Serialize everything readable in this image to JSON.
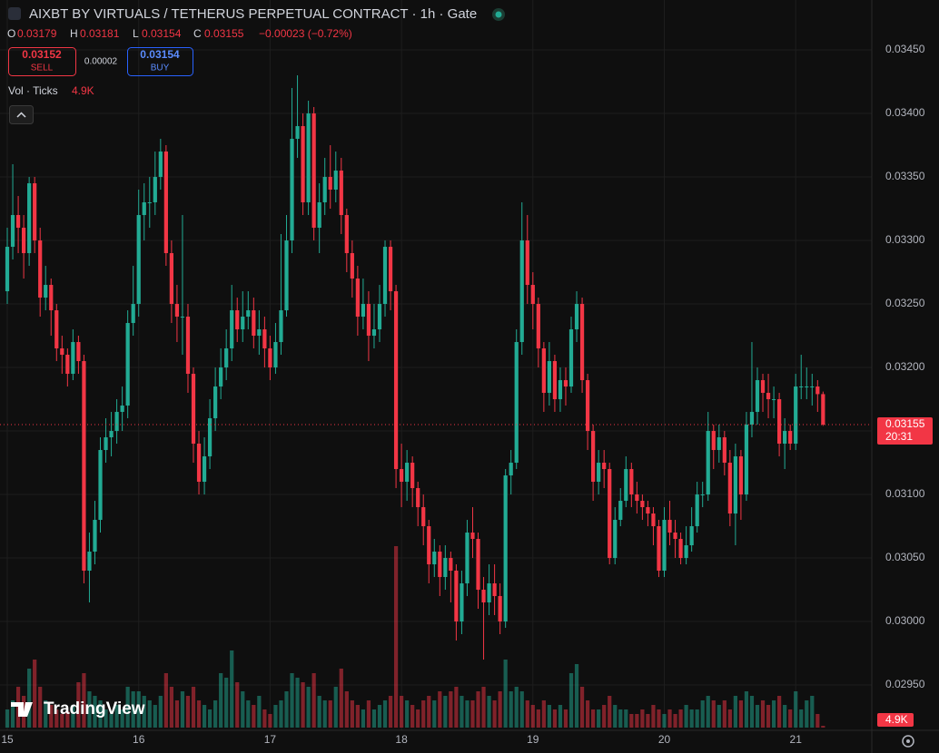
{
  "header": {
    "title": "AIXBT BY VIRTUALS / TETHERUS PERPETUAL CONTRACT · 1h · Gate",
    "o_key": "O",
    "o": "0.03179",
    "h_key": "H",
    "h": "0.03181",
    "l_key": "L",
    "l": "0.03154",
    "c_key": "C",
    "c": "0.03155",
    "change": "−0.00023 (−0.72%)",
    "sell_price": "0.03152",
    "sell": "SELL",
    "spread": "0.00002",
    "buy_price": "0.03154",
    "buy": "BUY",
    "vol_title": "Vol · Ticks",
    "vol_value": "4.9K",
    "brand": "TradingView"
  },
  "chart_data": {
    "type": "candlestick",
    "up_color": "#22ab94",
    "down_color": "#f23645",
    "volume_up_color": "rgba(34,171,148,0.5)",
    "volume_down_color": "rgba(242,54,69,0.5)",
    "open": [
      0.0326,
      0.03295,
      0.0332,
      0.0331,
      0.0329,
      0.03345,
      0.033,
      0.03255,
      0.03265,
      0.03245,
      0.03215,
      0.0321,
      0.03195,
      0.0322,
      0.03205,
      0.0304,
      0.03055,
      0.0308,
      0.03135,
      0.03145,
      0.0315,
      0.03165,
      0.0317,
      0.03235,
      0.0325,
      0.0332,
      0.0333,
      0.0333,
      0.0335,
      0.0337,
      0.0329,
      0.0325,
      0.0324,
      0.0324,
      0.03195,
      0.0314,
      0.0311,
      0.0313,
      0.0316,
      0.03185,
      0.032,
      0.03215,
      0.03245,
      0.0323,
      0.0324,
      0.03245,
      0.03225,
      0.0323,
      0.03215,
      0.032,
      0.0322,
      0.03245,
      0.033,
      0.0338,
      0.0339,
      0.0333,
      0.034,
      0.0331,
      0.0333,
      0.0335,
      0.0334,
      0.03355,
      0.0332,
      0.0329,
      0.0327,
      0.0324,
      0.0325,
      0.03225,
      0.0323,
      0.0325,
      0.03295,
      0.0326,
      0.0312,
      0.0311,
      0.03125,
      0.03105,
      0.0309,
      0.03075,
      0.03045,
      0.03055,
      0.03035,
      0.0305,
      0.0304,
      0.03,
      0.0303,
      0.0307,
      0.03065,
      0.03025,
      0.03015,
      0.0303,
      0.0302,
      0.03,
      0.03115,
      0.03125,
      0.0322,
      0.033,
      0.03265,
      0.0325,
      0.03215,
      0.0318,
      0.03205,
      0.03175,
      0.0319,
      0.03185,
      0.0323,
      0.0325,
      0.0319,
      0.0315,
      0.0311,
      0.03125,
      0.0312,
      0.0305,
      0.0308,
      0.03095,
      0.0312,
      0.031,
      0.03095,
      0.0309,
      0.03085,
      0.03075,
      0.0304,
      0.0308,
      0.0307,
      0.03065,
      0.0305,
      0.0306,
      0.03075,
      0.031,
      0.031,
      0.0315,
      0.03135,
      0.03145,
      0.03125,
      0.03085,
      0.0313,
      0.031,
      0.03155,
      0.03165,
      0.0319,
      0.0318,
      0.03175,
      0.03175,
      0.0314,
      0.0315,
      0.0314,
      0.03185,
      0.03185,
      0.03185,
      0.03185,
      0.03179
    ],
    "high": [
      0.0331,
      0.0336,
      0.03335,
      0.0332,
      0.0335,
      0.0335,
      0.0331,
      0.0328,
      0.0327,
      0.0325,
      0.03225,
      0.03215,
      0.0323,
      0.03225,
      0.0321,
      0.0307,
      0.03095,
      0.03145,
      0.0316,
      0.03165,
      0.03175,
      0.03185,
      0.03245,
      0.0328,
      0.0334,
      0.03345,
      0.0335,
      0.0337,
      0.0338,
      0.03375,
      0.033,
      0.03265,
      0.0332,
      0.0325,
      0.032,
      0.0315,
      0.03145,
      0.03175,
      0.032,
      0.03215,
      0.0323,
      0.03265,
      0.03255,
      0.0326,
      0.0326,
      0.03255,
      0.03245,
      0.0324,
      0.03225,
      0.03235,
      0.03305,
      0.0332,
      0.0342,
      0.0343,
      0.034,
      0.0341,
      0.03405,
      0.03345,
      0.03365,
      0.03375,
      0.0337,
      0.03365,
      0.03325,
      0.033,
      0.0328,
      0.0327,
      0.0326,
      0.0325,
      0.03265,
      0.033,
      0.033,
      0.03265,
      0.0314,
      0.03135,
      0.0313,
      0.0311,
      0.031,
      0.0308,
      0.03065,
      0.0306,
      0.0306,
      0.03055,
      0.03045,
      0.0304,
      0.0308,
      0.0309,
      0.0307,
      0.03035,
      0.03045,
      0.03045,
      0.0303,
      0.0312,
      0.03135,
      0.0323,
      0.0333,
      0.0332,
      0.03275,
      0.03255,
      0.0322,
      0.0322,
      0.0321,
      0.032,
      0.032,
      0.0324,
      0.0326,
      0.03255,
      0.03195,
      0.03155,
      0.03135,
      0.03135,
      0.03125,
      0.0309,
      0.03105,
      0.0313,
      0.03125,
      0.0311,
      0.031,
      0.03095,
      0.0309,
      0.0308,
      0.0309,
      0.03095,
      0.0308,
      0.0307,
      0.03075,
      0.0309,
      0.0311,
      0.0311,
      0.03165,
      0.03155,
      0.03155,
      0.0315,
      0.03135,
      0.0314,
      0.03135,
      0.03165,
      0.0322,
      0.032,
      0.03195,
      0.03195,
      0.03185,
      0.0318,
      0.0316,
      0.03155,
      0.03195,
      0.0321,
      0.032,
      0.03195,
      0.0319,
      0.03181
    ],
    "low": [
      0.0325,
      0.03285,
      0.0329,
      0.0327,
      0.0328,
      0.0329,
      0.0324,
      0.03245,
      0.03225,
      0.03205,
      0.03195,
      0.03185,
      0.0319,
      0.03195,
      0.0303,
      0.03015,
      0.03045,
      0.0307,
      0.03125,
      0.0313,
      0.0314,
      0.0315,
      0.0316,
      0.03225,
      0.0324,
      0.033,
      0.0331,
      0.0332,
      0.0334,
      0.0328,
      0.03235,
      0.0322,
      0.0321,
      0.0318,
      0.03125,
      0.031,
      0.031,
      0.0312,
      0.0315,
      0.03175,
      0.0319,
      0.03205,
      0.0322,
      0.0322,
      0.0323,
      0.03215,
      0.0321,
      0.032,
      0.0319,
      0.03195,
      0.0321,
      0.0324,
      0.0329,
      0.03365,
      0.0332,
      0.0332,
      0.033,
      0.0329,
      0.0332,
      0.03325,
      0.0333,
      0.03305,
      0.03275,
      0.03255,
      0.03225,
      0.0323,
      0.03205,
      0.03215,
      0.0322,
      0.0324,
      0.03245,
      0.03105,
      0.0309,
      0.03095,
      0.0309,
      0.03075,
      0.0306,
      0.0303,
      0.03035,
      0.0302,
      0.03025,
      0.03015,
      0.02985,
      0.0299,
      0.0302,
      0.0305,
      0.0301,
      0.0297,
      0.03005,
      0.03005,
      0.0299,
      0.02995,
      0.031,
      0.0312,
      0.0321,
      0.0325,
      0.0323,
      0.032,
      0.03165,
      0.0317,
      0.03165,
      0.03165,
      0.0317,
      0.0318,
      0.0322,
      0.0318,
      0.03135,
      0.03095,
      0.031,
      0.03105,
      0.03045,
      0.03045,
      0.03075,
      0.0309,
      0.0309,
      0.03085,
      0.0308,
      0.03075,
      0.0306,
      0.03035,
      0.03035,
      0.0306,
      0.0305,
      0.03045,
      0.03045,
      0.03055,
      0.0307,
      0.0309,
      0.03095,
      0.0312,
      0.03125,
      0.03115,
      0.03075,
      0.0306,
      0.0308,
      0.03095,
      0.03145,
      0.03155,
      0.03165,
      0.0316,
      0.0316,
      0.0313,
      0.0312,
      0.03135,
      0.03135,
      0.03175,
      0.03175,
      0.0317,
      0.03165,
      0.03154
    ],
    "close": [
      0.03295,
      0.0332,
      0.0331,
      0.0329,
      0.03345,
      0.033,
      0.03255,
      0.03265,
      0.03245,
      0.03215,
      0.0321,
      0.03195,
      0.0322,
      0.03205,
      0.0304,
      0.03055,
      0.0308,
      0.03135,
      0.03145,
      0.0315,
      0.03165,
      0.0317,
      0.03235,
      0.0325,
      0.0332,
      0.0333,
      0.0333,
      0.0335,
      0.0337,
      0.0329,
      0.0325,
      0.0324,
      0.0324,
      0.03195,
      0.0314,
      0.0311,
      0.0313,
      0.0316,
      0.03185,
      0.032,
      0.03215,
      0.03245,
      0.0323,
      0.0324,
      0.03245,
      0.03225,
      0.0323,
      0.03215,
      0.032,
      0.0322,
      0.03245,
      0.033,
      0.0338,
      0.0339,
      0.0333,
      0.034,
      0.0331,
      0.0333,
      0.0335,
      0.0334,
      0.03355,
      0.0332,
      0.0329,
      0.0327,
      0.0324,
      0.0325,
      0.03225,
      0.0323,
      0.0325,
      0.03295,
      0.0326,
      0.0312,
      0.0311,
      0.03125,
      0.03105,
      0.0309,
      0.03075,
      0.03045,
      0.03055,
      0.03035,
      0.0305,
      0.0304,
      0.03,
      0.0303,
      0.0307,
      0.03065,
      0.03025,
      0.03015,
      0.0303,
      0.0302,
      0.03,
      0.03115,
      0.03125,
      0.0322,
      0.033,
      0.03265,
      0.0325,
      0.03215,
      0.0318,
      0.03205,
      0.03175,
      0.0319,
      0.03185,
      0.0323,
      0.0325,
      0.0319,
      0.0315,
      0.0311,
      0.03125,
      0.0312,
      0.0305,
      0.0308,
      0.03095,
      0.0312,
      0.031,
      0.03095,
      0.0309,
      0.03085,
      0.03075,
      0.0304,
      0.0308,
      0.0307,
      0.03065,
      0.0305,
      0.0306,
      0.03075,
      0.031,
      0.031,
      0.0315,
      0.03135,
      0.03145,
      0.03125,
      0.03085,
      0.0313,
      0.031,
      0.03155,
      0.03165,
      0.0319,
      0.0318,
      0.03175,
      0.03175,
      0.0314,
      0.0315,
      0.0314,
      0.03185,
      0.03185,
      0.03185,
      0.03185,
      0.03179,
      0.03155
    ],
    "volume": [
      50000,
      75000,
      112500,
      87500,
      162500,
      187500,
      112500,
      75000,
      62500,
      50000,
      37500,
      45000,
      62500,
      125000,
      150000,
      100000,
      87500,
      75000,
      50000,
      37500,
      62500,
      50000,
      112500,
      100000,
      100000,
      87500,
      75000,
      62500,
      87500,
      150000,
      112500,
      75000,
      100000,
      87500,
      112500,
      75000,
      62500,
      50000,
      75000,
      150000,
      137500,
      212500,
      125000,
      100000,
      75000,
      62500,
      87500,
      50000,
      37500,
      62500,
      75000,
      100000,
      150000,
      137500,
      125000,
      112500,
      150000,
      87500,
      75000,
      75000,
      112500,
      162500,
      100000,
      75000,
      62500,
      50000,
      75000,
      50000,
      62500,
      75000,
      87500,
      500000,
      87500,
      75000,
      62500,
      50000,
      75000,
      87500,
      75000,
      100000,
      87500,
      100000,
      112500,
      87500,
      75000,
      75000,
      100000,
      112500,
      87500,
      75000,
      100000,
      187500,
      100000,
      112500,
      100000,
      75000,
      62500,
      50000,
      75000,
      62500,
      50000,
      62500,
      50000,
      150000,
      175000,
      112500,
      75000,
      50000,
      50000,
      62500,
      87500,
      62500,
      50000,
      50000,
      37500,
      37500,
      50000,
      37500,
      62500,
      50000,
      37500,
      50000,
      37500,
      50000,
      62500,
      50000,
      50000,
      75000,
      87500,
      75000,
      62500,
      75000,
      50000,
      87500,
      75000,
      100000,
      87500,
      62500,
      75000,
      62500,
      75000,
      87500,
      62500,
      50000,
      100000,
      50000,
      75000,
      87500,
      37500,
      4900
    ],
    "xlim": [
      -1.33,
      157.9
    ],
    "ylim": [
      0.029143,
      0.034893
    ],
    "xticks": [
      {
        "value": 0,
        "label": "15"
      },
      {
        "value": 24,
        "label": "16"
      },
      {
        "value": 48,
        "label": "17"
      },
      {
        "value": 72,
        "label": "18"
      },
      {
        "value": 96,
        "label": "19"
      },
      {
        "value": 120,
        "label": "20"
      },
      {
        "value": 144,
        "label": "21"
      }
    ],
    "yticks": [
      {
        "value": 0.0295,
        "label": "0.02950"
      },
      {
        "value": 0.03,
        "label": "0.03000"
      },
      {
        "value": 0.0305,
        "label": "0.03050"
      },
      {
        "value": 0.031,
        "label": "0.03100"
      },
      {
        "value": 0.0315,
        "label": "0.03150"
      },
      {
        "value": 0.032,
        "label": "0.03200"
      },
      {
        "value": 0.0325,
        "label": "0.03250"
      },
      {
        "value": 0.033,
        "label": "0.03300"
      },
      {
        "value": 0.0335,
        "label": "0.03350"
      },
      {
        "value": 0.034,
        "label": "0.03400"
      },
      {
        "value": 0.0345,
        "label": "0.03450"
      }
    ],
    "grid": true,
    "last_price": {
      "value": 0.03155,
      "label": "0.03155",
      "countdown": "20:31"
    }
  }
}
